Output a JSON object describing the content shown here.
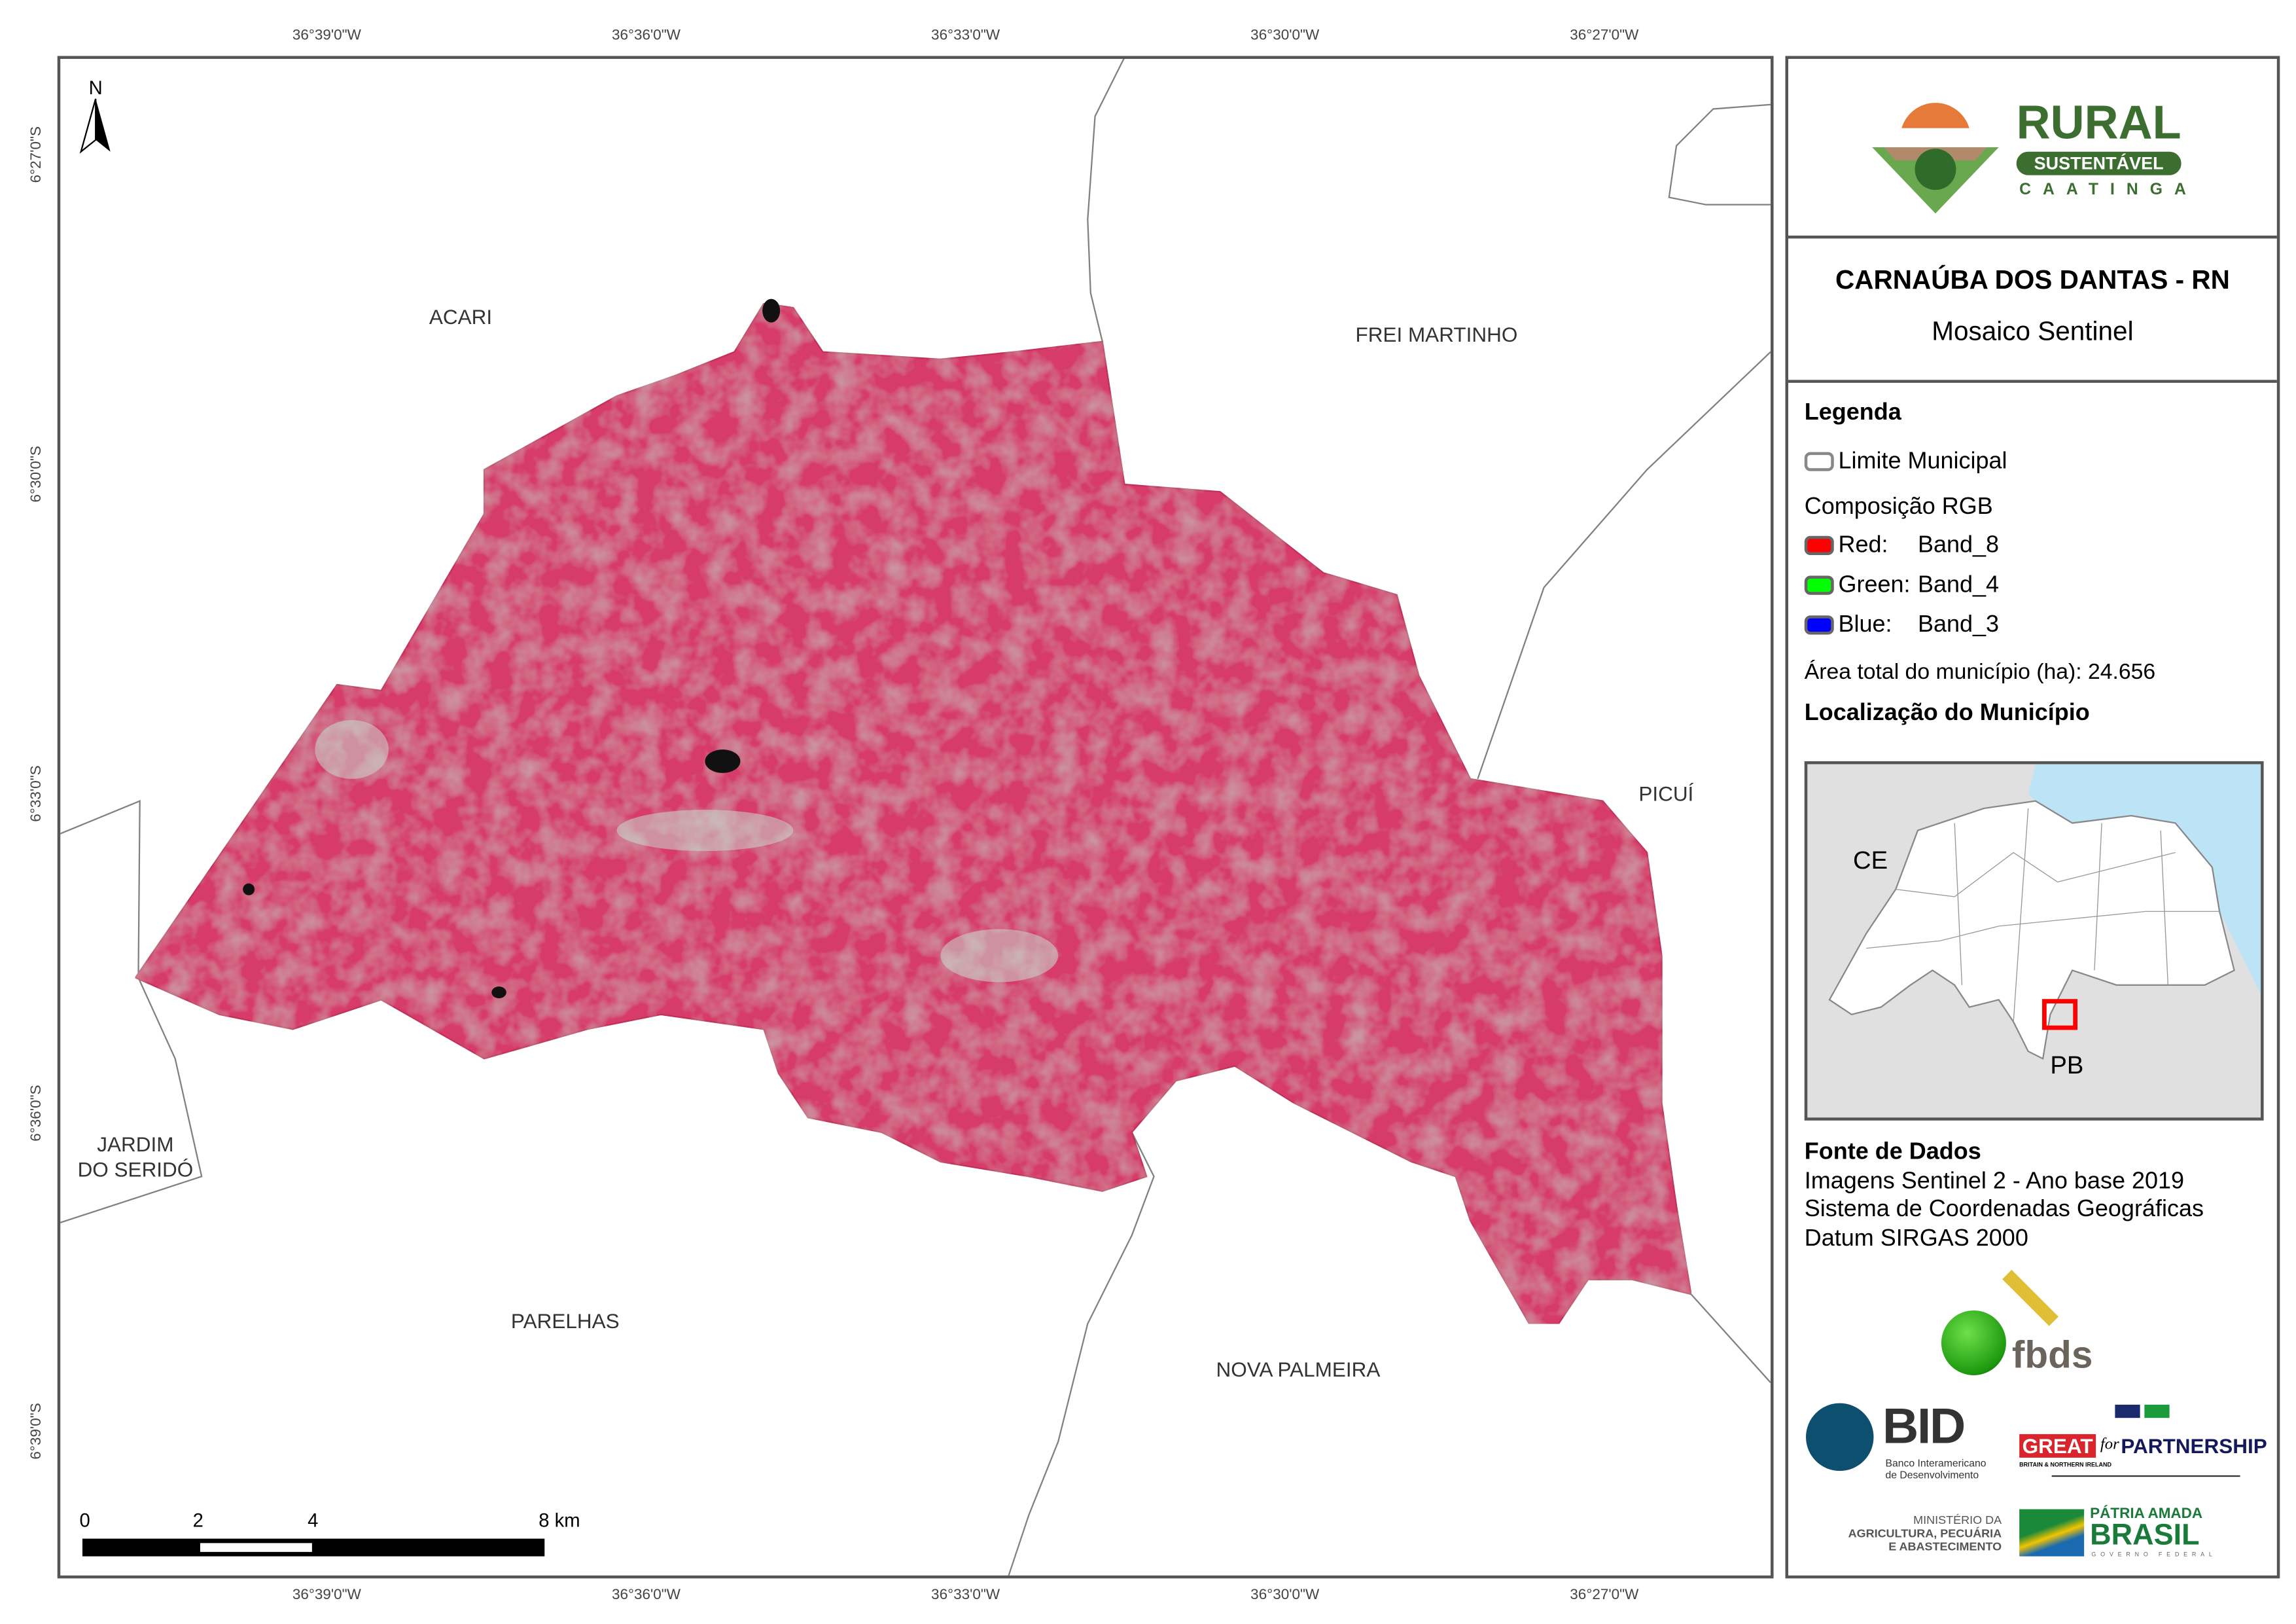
{
  "map": {
    "north_label": "N",
    "top_ticks": [
      "36°39'0\"W",
      "36°36'0\"W",
      "36°33'0\"W",
      "36°30'0\"W",
      "36°27'0\"W"
    ],
    "bottom_ticks": [
      "36°39'0\"W",
      "36°36'0\"W",
      "36°33'0\"W",
      "36°30'0\"W",
      "36°27'0\"W"
    ],
    "left_ticks": [
      "6°27'0\"S",
      "6°30'0\"S",
      "6°33'0\"S",
      "6°36'0\"S",
      "6°39'0\"S"
    ],
    "neighbors": [
      "ACARI",
      "FREI MARTINHO",
      "PICUÍ",
      "JARDIM",
      "DO SERIDÓ",
      "PARELHAS",
      "NOVA PALMEIRA"
    ],
    "scale_bar": {
      "labels": [
        "0",
        "2",
        "4",
        "8 km"
      ]
    },
    "colors": {
      "vegetation": "#d63a6a",
      "boundary": "#808080",
      "frame": "#555555"
    }
  },
  "panel": {
    "logo_rural": {
      "word1": "RURAL",
      "word2": "SUSTENTÁVEL",
      "word3": "CAATINGA"
    },
    "title": "CARNAÚBA DOS DANTAS - RN",
    "subtitle": "Mosaico Sentinel",
    "legend": {
      "heading": "Legenda",
      "boundary_label": "Limite Municipal",
      "rgb_heading": "Composição RGB",
      "bands": [
        {
          "channel": "Red:",
          "band": "Band_8",
          "color": "#ff0000"
        },
        {
          "channel": "Green:",
          "band": "Band_4",
          "color": "#00ff00"
        },
        {
          "channel": "Blue:",
          "band": "Band_3",
          "color": "#0000ff"
        }
      ],
      "area_label": "Área total do município (ha): 24.656"
    },
    "location": {
      "heading": "Localização do Município",
      "labels": [
        "CE",
        "PB"
      ],
      "colors": {
        "ocean": "#bde3f7",
        "other_states": "#e0e0e0",
        "highlight": "#ff0000"
      }
    },
    "sources": {
      "heading": "Fonte de Dados",
      "lines": [
        "Imagens Sentinel 2 - Ano base 2019",
        "Sistema de Coordenadas Geográficas",
        "Datum SIRGAS 2000"
      ]
    },
    "logos": {
      "fbds": "fbds",
      "bid": "BID",
      "bid_sub1": "Banco Interamericano",
      "bid_sub2": "de Desenvolvimento",
      "great": "GREAT",
      "great_sub": "BRITAIN & NORTHERN IRELAND",
      "for": "for",
      "partnership": "PARTNERSHIP",
      "mapa1": "MINISTÉRIO DA",
      "mapa2": "AGRICULTURA, PECUÁRIA",
      "mapa3": "E ABASTECIMENTO",
      "brasil1": "PÁTRIA AMADA",
      "brasil2": "BRASIL",
      "brasil3": "GOVERNO FEDERAL"
    }
  }
}
